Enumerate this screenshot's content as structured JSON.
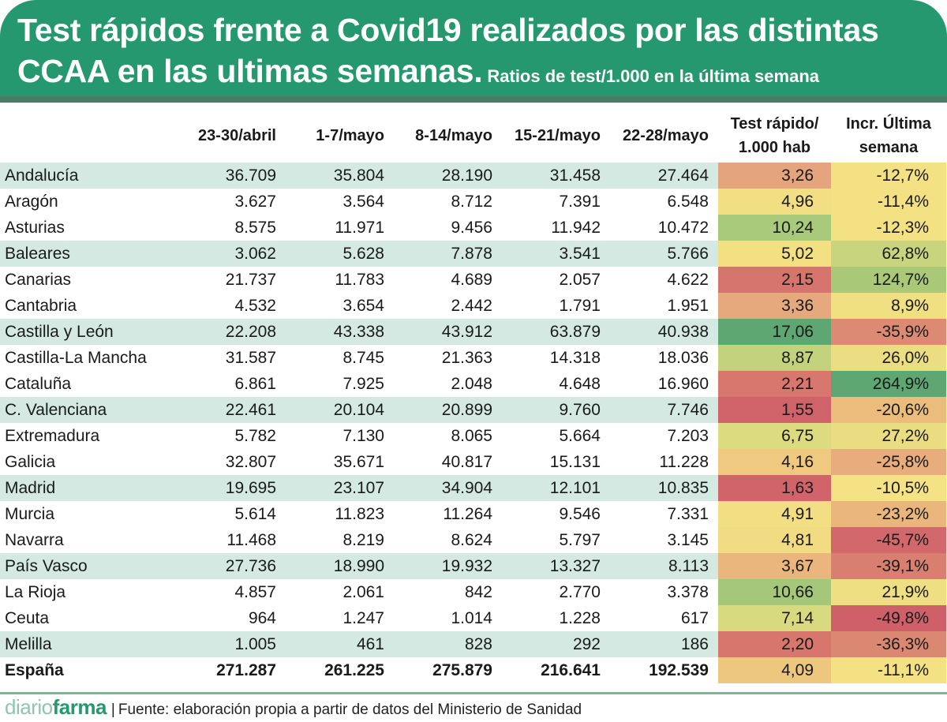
{
  "header": {
    "title": "Test rápidos frente a Covid19 realizados por las distintas",
    "title_line2": "CCAA en las ultimas semanas.",
    "subtitle": "Ratios de test/1.000 en la última semana"
  },
  "colors": {
    "header_bg": "#26986f",
    "header_band": "#4d7a62",
    "row_shade": "#d3e9e1",
    "heat_red": "#d0626a",
    "heat_orange": "#e4a57e",
    "heat_yellow": "#f3e183",
    "heat_green": "#5fa772"
  },
  "chart_data": {
    "type": "table",
    "title": "Test rápidos frente a Covid19 realizados por las distintas CCAA en las ultimas semanas.",
    "subtitle": "Ratios de test/1.000 en la última semana",
    "columns": [
      "",
      "23-30/abril",
      "1-7/mayo",
      "8-14/mayo",
      "15-21/mayo",
      "22-28/mayo",
      "Test rápido/ 1.000 hab",
      "Incr. Última semana"
    ],
    "rows": [
      {
        "region": "Andalucía",
        "weeks": [
          "36.709",
          "35.804",
          "28.190",
          "31.458",
          "27.464"
        ],
        "ratio": "3,26",
        "incr": "-12,7%",
        "ratio_color": "#e4a57e",
        "incr_color": "#f3e183",
        "shaded": true
      },
      {
        "region": "Aragón",
        "weeks": [
          "3.627",
          "3.564",
          "8.712",
          "7.391",
          "6.548"
        ],
        "ratio": "4,96",
        "incr": "-11,4%",
        "ratio_color": "#f2df83",
        "incr_color": "#f3e183",
        "shaded": false
      },
      {
        "region": "Asturias",
        "weeks": [
          "8.575",
          "11.971",
          "9.456",
          "11.942",
          "10.472"
        ],
        "ratio": "10,24",
        "incr": "-12,3%",
        "ratio_color": "#a9c97b",
        "incr_color": "#f3e183",
        "shaded": false
      },
      {
        "region": "Baleares",
        "weeks": [
          "3.062",
          "5.628",
          "7.878",
          "3.541",
          "5.766"
        ],
        "ratio": "5,02",
        "incr": "62,8%",
        "ratio_color": "#f2e083",
        "incr_color": "#c9d47e",
        "shaded": true
      },
      {
        "region": "Canarias",
        "weeks": [
          "21.737",
          "11.783",
          "4.689",
          "2.057",
          "4.622"
        ],
        "ratio": "2,15",
        "incr": "124,7%",
        "ratio_color": "#d6756d",
        "incr_color": "#a9c979",
        "shaded": false
      },
      {
        "region": "Cantabria",
        "weeks": [
          "4.532",
          "3.654",
          "2.442",
          "1.791",
          "1.951"
        ],
        "ratio": "3,36",
        "incr": "8,9%",
        "ratio_color": "#e6a97e",
        "incr_color": "#f0e082",
        "shaded": false
      },
      {
        "region": "Castilla y León",
        "weeks": [
          "22.208",
          "43.338",
          "43.912",
          "63.879",
          "40.938"
        ],
        "ratio": "17,06",
        "incr": "-35,9%",
        "ratio_color": "#5fa772",
        "incr_color": "#dc8a73",
        "shaded": true
      },
      {
        "region": "Castilla-La Mancha",
        "weeks": [
          "31.587",
          "8.745",
          "21.363",
          "14.318",
          "18.036"
        ],
        "ratio": "8,87",
        "incr": "26,0%",
        "ratio_color": "#c3d37d",
        "incr_color": "#ebdd81",
        "shaded": false
      },
      {
        "region": "Cataluña",
        "weeks": [
          "6.861",
          "7.925",
          "2.048",
          "4.648",
          "16.960"
        ],
        "ratio": "2,21",
        "incr": "264,9%",
        "ratio_color": "#d7776d",
        "incr_color": "#5fa772",
        "shaded": false
      },
      {
        "region": "C. Valenciana",
        "weeks": [
          "22.461",
          "20.104",
          "20.899",
          "9.760",
          "7.746"
        ],
        "ratio": "1,55",
        "incr": "-20,6%",
        "ratio_color": "#d0626a",
        "incr_color": "#ecbc7c",
        "shaded": true
      },
      {
        "region": "Extremadura",
        "weeks": [
          "5.782",
          "7.130",
          "8.065",
          "5.664",
          "7.203"
        ],
        "ratio": "6,75",
        "incr": "27,2%",
        "ratio_color": "#dcdb80",
        "incr_color": "#e9dc81",
        "shaded": false
      },
      {
        "region": "Galicia",
        "weeks": [
          "32.807",
          "35.671",
          "40.817",
          "15.131",
          "11.228"
        ],
        "ratio": "4,16",
        "incr": "-25,8%",
        "ratio_color": "#eec97f",
        "incr_color": "#e7ad7c",
        "shaded": false
      },
      {
        "region": "Madrid",
        "weeks": [
          "19.695",
          "23.107",
          "34.904",
          "12.101",
          "10.835"
        ],
        "ratio": "1,63",
        "incr": "-10,5%",
        "ratio_color": "#d1646a",
        "incr_color": "#f4e284",
        "shaded": true
      },
      {
        "region": "Murcia",
        "weeks": [
          "5.614",
          "11.823",
          "11.264",
          "9.546",
          "7.331"
        ],
        "ratio": "4,91",
        "incr": "-23,2%",
        "ratio_color": "#f2de83",
        "incr_color": "#ebb67c",
        "shaded": false
      },
      {
        "region": "Navarra",
        "weeks": [
          "11.468",
          "8.219",
          "8.624",
          "5.797",
          "3.145"
        ],
        "ratio": "4,81",
        "incr": "-45,7%",
        "ratio_color": "#f1dc83",
        "incr_color": "#d2686b",
        "shaded": false
      },
      {
        "region": "País Vasco",
        "weeks": [
          "27.736",
          "18.990",
          "19.932",
          "13.327",
          "8.113"
        ],
        "ratio": "3,67",
        "incr": "-39,1%",
        "ratio_color": "#eab67e",
        "incr_color": "#d97f70",
        "shaded": true
      },
      {
        "region": "La Rioja",
        "weeks": [
          "4.857",
          "2.061",
          "842",
          "2.770",
          "3.378"
        ],
        "ratio": "10,66",
        "incr": "21,9%",
        "ratio_color": "#a5c77a",
        "incr_color": "#eedf82",
        "shaded": false
      },
      {
        "region": "Ceuta",
        "weeks": [
          "964",
          "1.247",
          "1.014",
          "1.228",
          "617"
        ],
        "ratio": "7,14",
        "incr": "-49,8%",
        "ratio_color": "#d9da80",
        "incr_color": "#cf5f69",
        "shaded": false
      },
      {
        "region": "Melilla",
        "weeks": [
          "1.005",
          "461",
          "828",
          "292",
          "186"
        ],
        "ratio": "2,20",
        "incr": "-36,3%",
        "ratio_color": "#d6766d",
        "incr_color": "#db8872",
        "shaded": true
      },
      {
        "region": "España",
        "weeks": [
          "271.287",
          "261.225",
          "275.879",
          "216.641",
          "192.539"
        ],
        "ratio": "4,09",
        "incr": "-11,1%",
        "ratio_color": "#eec77f",
        "incr_color": "#f3e183",
        "shaded": false,
        "total": true
      }
    ]
  },
  "table": {
    "headers": {
      "w1": "23-30/abril",
      "w2": "1-7/mayo",
      "w3": "8-14/mayo",
      "w4": "15-21/mayo",
      "w5": "22-28/mayo",
      "ratio_line1": "Test rápido/",
      "ratio_line2": "1.000 hab",
      "incr_line1": "Incr. Última",
      "incr_line2": "semana"
    }
  },
  "footer": {
    "brand_light": "diario",
    "brand_bold": "farma",
    "separator": "|",
    "source": "Fuente: elaboración propia a partir de datos del Ministerio de Sanidad"
  }
}
